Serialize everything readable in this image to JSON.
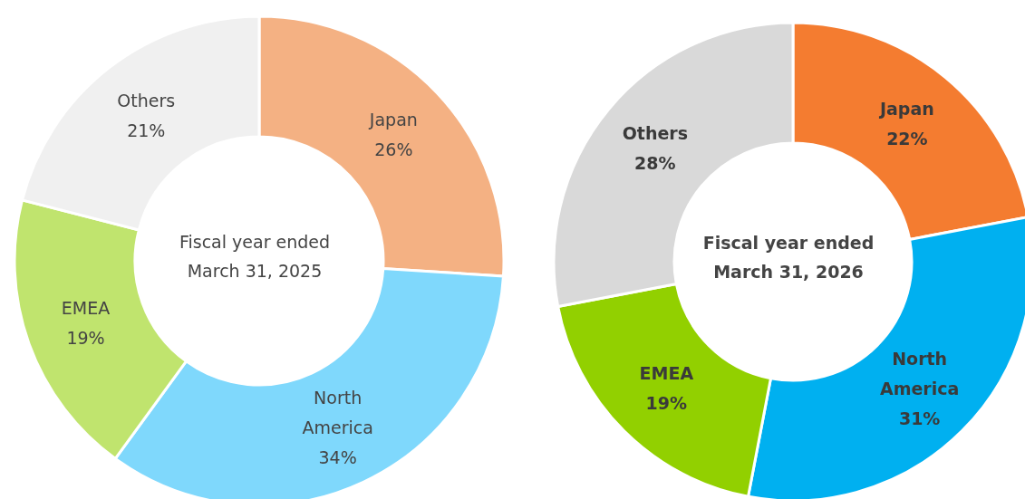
{
  "chart_data": [
    {
      "type": "donut",
      "title": "Fiscal year ended\nMarch 31, 2025",
      "categories": [
        "Japan",
        "North America",
        "EMEA",
        "Others"
      ],
      "values": [
        26,
        34,
        19,
        21
      ],
      "value_labels": [
        "26%",
        "34%",
        "19%",
        "21%"
      ],
      "colors": [
        "#f4b183",
        "#7fd8fc",
        "#c0e46e",
        "#f0f0f0"
      ],
      "legend": false
    },
    {
      "type": "donut",
      "title": "Fiscal year ended\nMarch 31, 2026",
      "categories": [
        "Japan",
        "North America",
        "EMEA",
        "Others"
      ],
      "values": [
        22,
        31,
        19,
        28
      ],
      "value_labels": [
        "22%",
        "31%",
        "19%",
        "28%"
      ],
      "colors": [
        "#f47c30",
        "#00b0f0",
        "#92d000",
        "#d9d9d9"
      ],
      "legend": false
    }
  ]
}
